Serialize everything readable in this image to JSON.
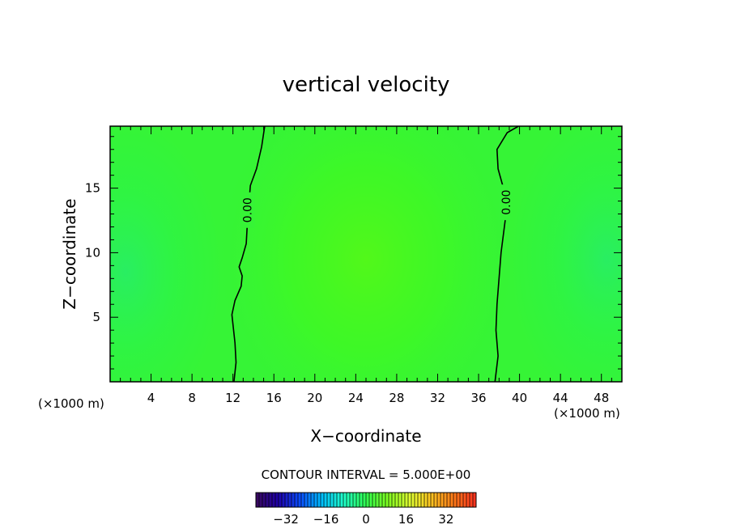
{
  "chart_data": {
    "type": "heatmap",
    "title": "vertical velocity",
    "xlabel": "X−coordinate",
    "ylabel": "Z−coordinate",
    "x_unit_left": "(×1000 m)",
    "x_unit_right": "(×1000 m)",
    "xlim": [
      0,
      50
    ],
    "ylim": [
      0,
      19.8
    ],
    "x_ticks": [
      4,
      8,
      12,
      16,
      20,
      24,
      28,
      32,
      36,
      40,
      44,
      48
    ],
    "x_tick_labels": [
      "4",
      "8",
      "12",
      "16",
      "20",
      "24",
      "28",
      "32",
      "36",
      "40",
      "44",
      "48"
    ],
    "y_ticks": [
      5,
      10,
      15
    ],
    "y_tick_labels": [
      "5",
      "10",
      "15"
    ],
    "contour_interval_text": "CONTOUR INTERVAL = 5.000E+00",
    "contour_level": 0.0,
    "contour_label_text": "0.00",
    "zero_contours": [
      {
        "label": "0.00",
        "label_at": [
          13.4,
          13.3
        ],
        "points": [
          [
            12.1,
            0
          ],
          [
            12.3,
            1.5
          ],
          [
            12.2,
            3
          ],
          [
            11.9,
            5.2
          ],
          [
            12.2,
            6.3
          ],
          [
            12.8,
            7.4
          ],
          [
            12.9,
            8.2
          ],
          [
            12.6,
            8.9
          ],
          [
            12.9,
            9.6
          ],
          [
            13.3,
            10.7
          ],
          [
            13.4,
            12.2
          ],
          [
            13.7,
            15.2
          ],
          [
            14.3,
            16.5
          ],
          [
            14.8,
            18.2
          ],
          [
            15.1,
            19.8
          ]
        ]
      },
      {
        "label": "0.00",
        "label_at": [
          38.7,
          13.9
        ],
        "points": [
          [
            37.6,
            0
          ],
          [
            37.9,
            2
          ],
          [
            37.7,
            4
          ],
          [
            37.8,
            6
          ],
          [
            38.0,
            8
          ],
          [
            38.2,
            10
          ],
          [
            38.6,
            12.5
          ],
          [
            38.5,
            14.8
          ],
          [
            37.9,
            16.5
          ],
          [
            37.8,
            18
          ],
          [
            38.8,
            19.3
          ],
          [
            39.9,
            19.8
          ]
        ]
      }
    ],
    "field_features": [
      {
        "x": 1.5,
        "z": 8.5,
        "value": -4,
        "note": "weak downdraft near left edge"
      },
      {
        "x": 25,
        "z": 9.5,
        "value": 6,
        "note": "weak updraft in center"
      },
      {
        "x": 48.5,
        "z": 9.5,
        "value": -4,
        "note": "weak downdraft near right edge"
      }
    ],
    "colorbar": {
      "range": [
        -44,
        44
      ],
      "ticks": [
        -32,
        -16,
        0,
        16,
        32
      ],
      "tick_labels": [
        "−32",
        "−16",
        "0",
        "16",
        "32"
      ],
      "colormap": [
        "#3a0a5e",
        "#1f00a8",
        "#0a4cff",
        "#00bfff",
        "#20ffc8",
        "#30ff50",
        "#80ff20",
        "#e0ff30",
        "#ffc020",
        "#ff7818",
        "#ff3020"
      ]
    },
    "grid": false,
    "legend": "none"
  }
}
